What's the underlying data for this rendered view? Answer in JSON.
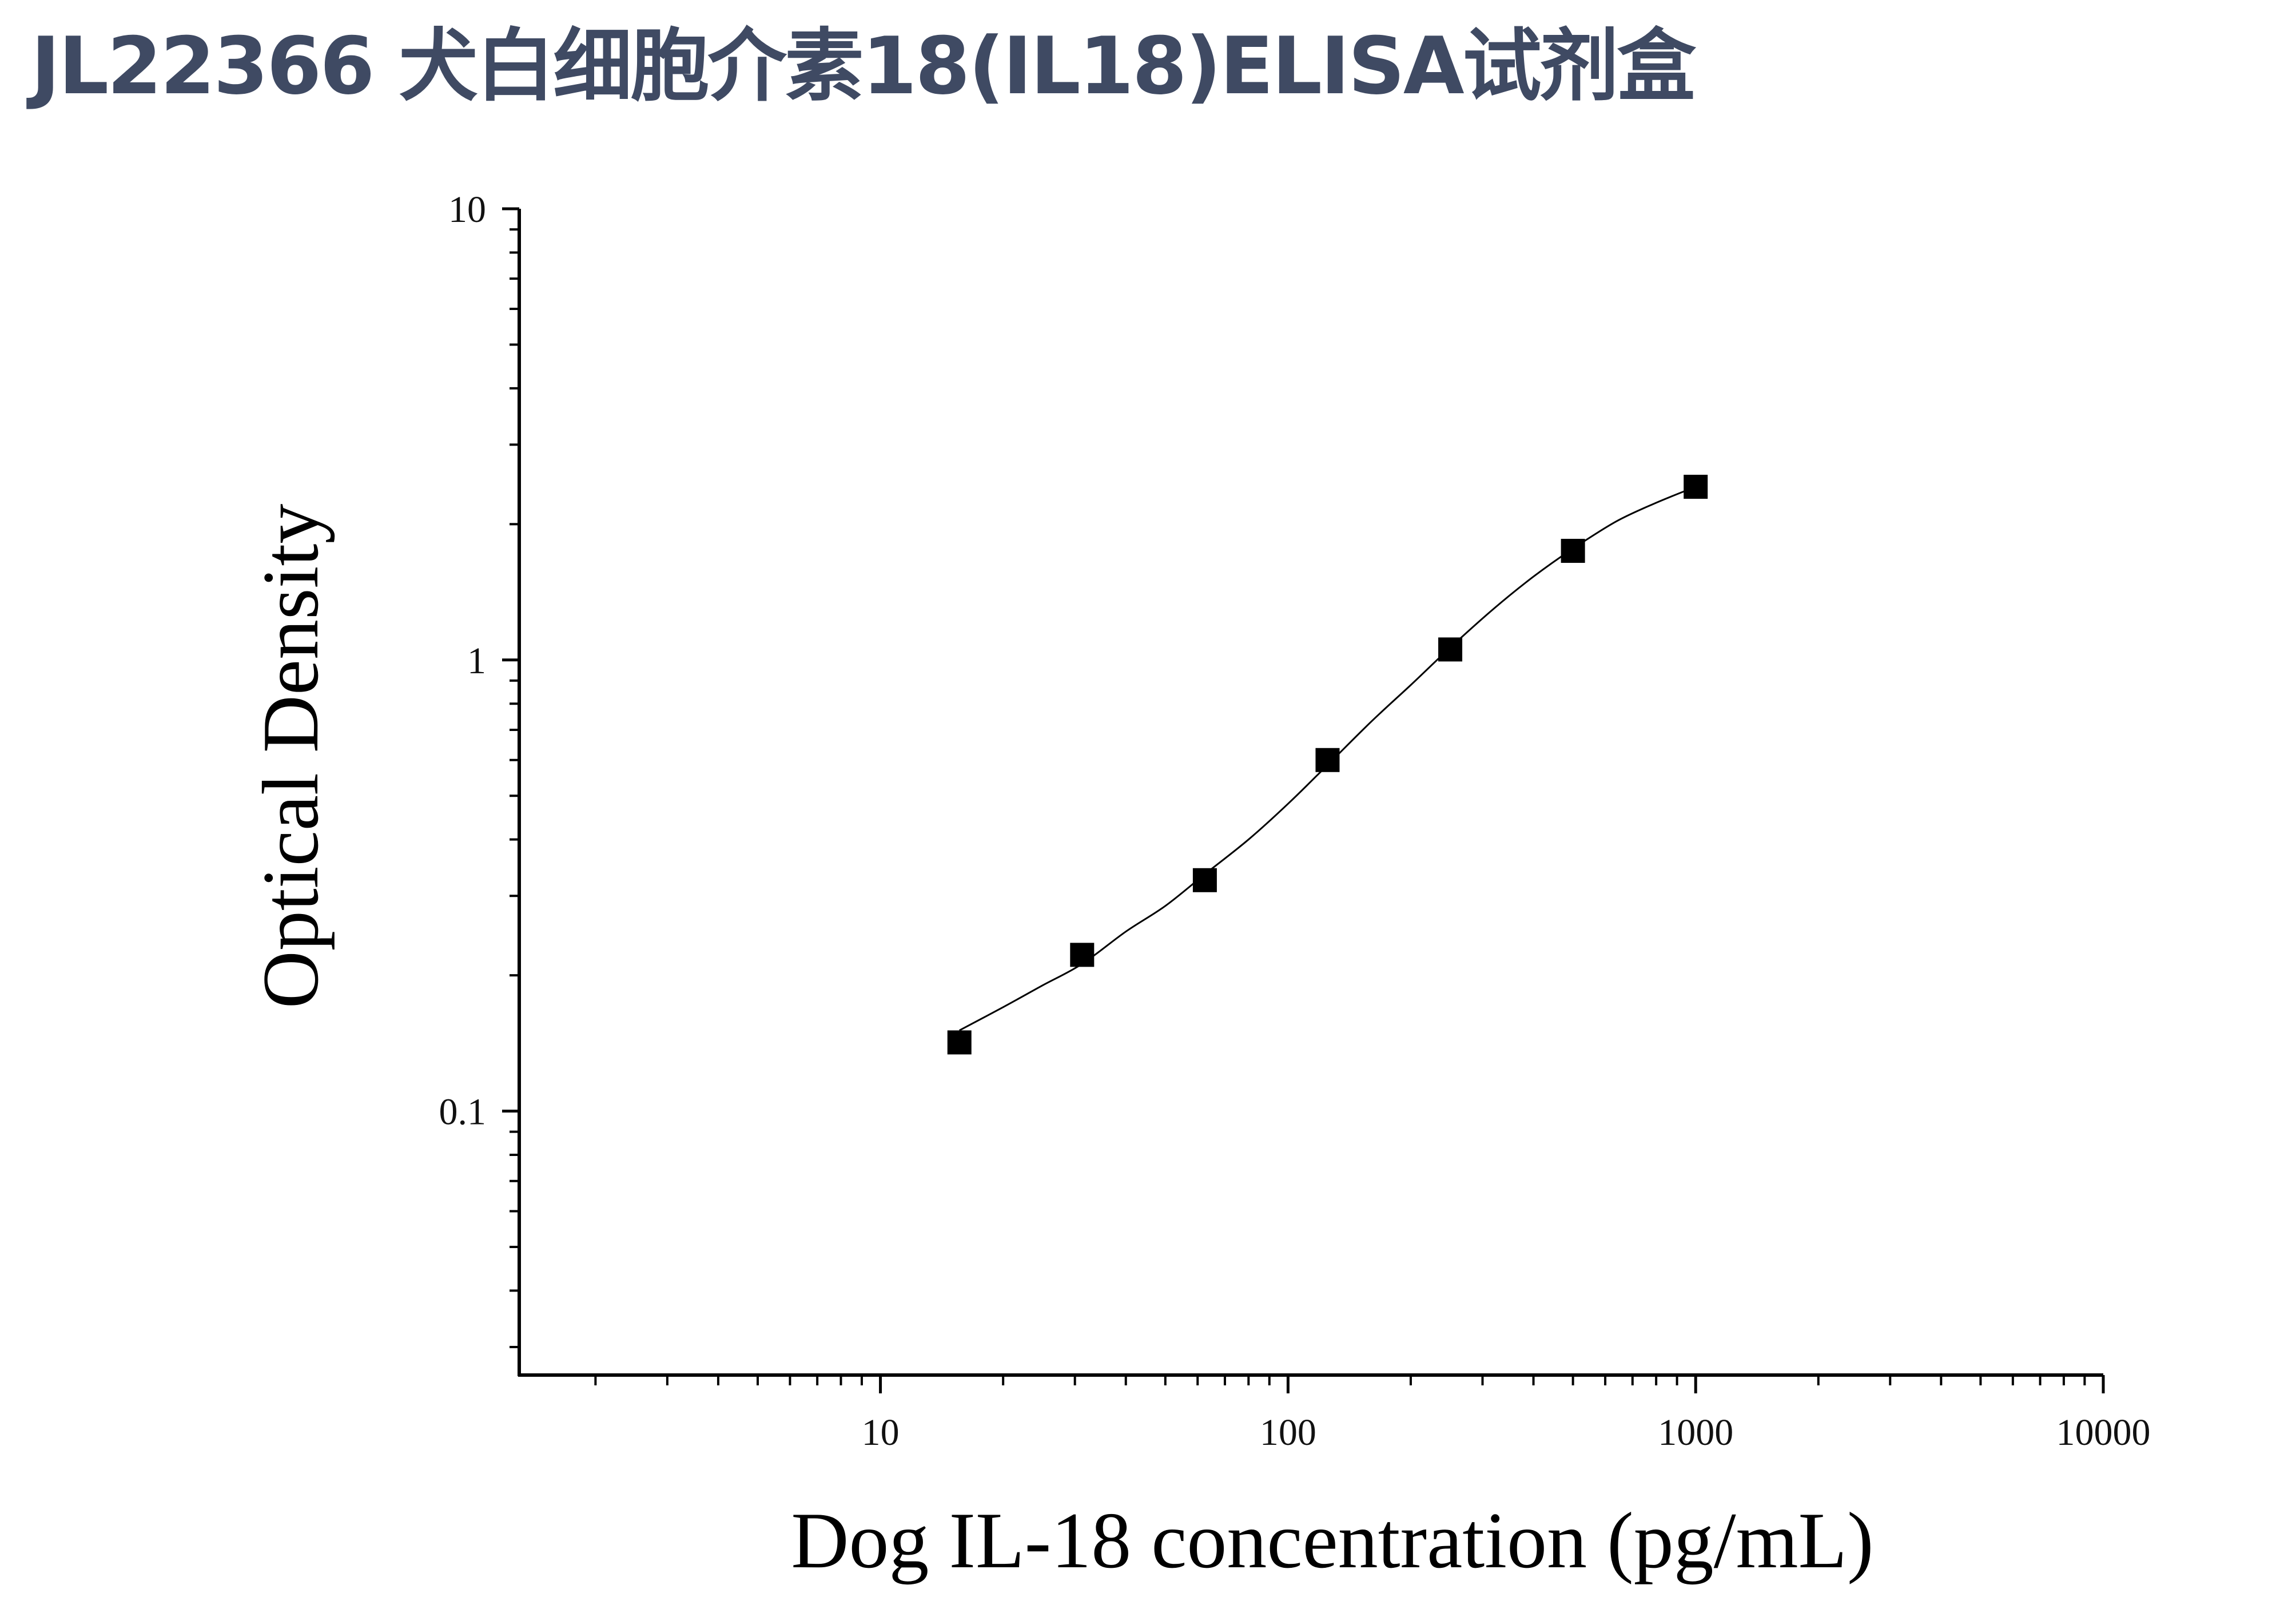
{
  "page": {
    "title": "JL22366 犬白细胞介素18(IL18)ELISA试剂盒"
  },
  "chart_data": {
    "type": "scatter",
    "title": "JL22366 犬白细胞介素18(IL18)ELISA试剂盒",
    "xlabel": "Dog IL-18 concentration (pg/mL)",
    "ylabel": "Optical Density",
    "x_scale": "log",
    "y_scale": "log",
    "xlim": [
      1.3,
      10000
    ],
    "ylim": [
      0.026,
      10
    ],
    "x_ticks": [
      10,
      100,
      1000,
      10000
    ],
    "x_tick_labels": [
      "10",
      "100",
      "1000",
      "10000"
    ],
    "y_ticks": [
      0.1,
      1,
      10
    ],
    "y_tick_labels": [
      "0.1",
      "1",
      "10"
    ],
    "grid": false,
    "legend": "none",
    "colors": {
      "points": "#000000",
      "curve": "#000000",
      "axes": "#000000",
      "title": "#3f4a63"
    },
    "series": [
      {
        "marker": "square",
        "x": [
          15.625,
          31.25,
          62.5,
          125,
          250,
          500,
          1000
        ],
        "y": [
          0.142,
          0.222,
          0.325,
          0.6,
          1.055,
          1.745,
          2.42
        ]
      }
    ],
    "fit_curve": {
      "x": [
        15.625,
        20,
        25,
        31.25,
        40,
        50,
        62.5,
        80,
        100,
        125,
        160,
        200,
        250,
        320,
        400,
        500,
        640,
        800,
        1000
      ],
      "y": [
        0.151,
        0.17,
        0.19,
        0.212,
        0.25,
        0.285,
        0.335,
        0.4,
        0.48,
        0.585,
        0.73,
        0.88,
        1.065,
        1.3,
        1.53,
        1.765,
        2.03,
        2.23,
        2.42
      ]
    }
  }
}
